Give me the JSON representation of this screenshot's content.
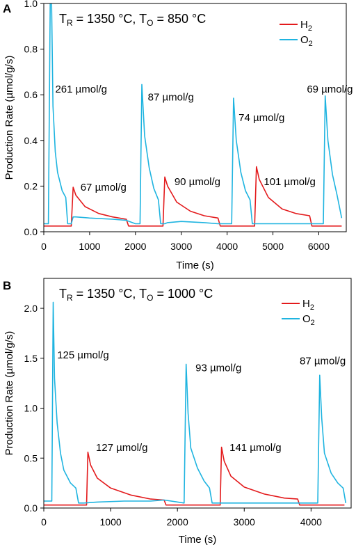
{
  "chart_data": [
    {
      "type": "line",
      "panel_label": "A",
      "condition": {
        "tr_sub": "R",
        "tr_value": " = 1350 °C, T",
        "to_sub": "O",
        "to_value": " = 850 °C"
      },
      "xlabel": "Time (s)",
      "ylabel": "Production Rate (µmol/g/s)",
      "xlim": [
        0,
        6600
      ],
      "ylim": [
        0,
        1.0
      ],
      "xticks": [
        0,
        1000,
        2000,
        3000,
        4000,
        5000,
        6000
      ],
      "yticks": [
        0.0,
        0.2,
        0.4,
        0.6,
        0.8,
        1.0
      ],
      "ytick_labels": [
        "0.0",
        "0.2",
        "0.4",
        "0.6",
        "0.8",
        "1.0"
      ],
      "legend": {
        "position": "top-right",
        "entries": [
          {
            "base": "H",
            "sub": "2",
            "color": "#e31a1c"
          },
          {
            "base": "O",
            "sub": "2",
            "color": "#1fb4e0"
          }
        ]
      },
      "series": [
        {
          "name": "H2",
          "color": "#e31a1c",
          "x": [
            0,
            200,
            400,
            600,
            640,
            700,
            900,
            1200,
            1500,
            1800,
            1850,
            2000,
            2200,
            2400,
            2600,
            2640,
            2700,
            2900,
            3200,
            3500,
            3800,
            3850,
            4000,
            4200,
            4400,
            4600,
            4640,
            4700,
            4900,
            5200,
            5500,
            5800,
            5850,
            6000,
            6200,
            6500
          ],
          "y": [
            0.025,
            0.025,
            0.025,
            0.025,
            0.195,
            0.16,
            0.11,
            0.08,
            0.065,
            0.055,
            0.025,
            0.025,
            0.025,
            0.025,
            0.025,
            0.24,
            0.2,
            0.13,
            0.09,
            0.07,
            0.06,
            0.025,
            0.025,
            0.025,
            0.025,
            0.025,
            0.285,
            0.23,
            0.15,
            0.1,
            0.08,
            0.07,
            0.025,
            0.025,
            0.025,
            0.025
          ]
        },
        {
          "name": "O2",
          "color": "#1fb4e0",
          "x": [
            0,
            100,
            140,
            170,
            200,
            250,
            300,
            400,
            480,
            520,
            600,
            640,
            700,
            1000,
            1500,
            1800,
            2000,
            2100,
            2140,
            2200,
            2300,
            2400,
            2500,
            2550,
            2640,
            2700,
            3000,
            3500,
            3800,
            4000,
            4100,
            4140,
            4200,
            4300,
            4400,
            4500,
            4550,
            4640,
            5000,
            5500,
            5800,
            6000,
            6100,
            6140,
            6200,
            6300,
            6400,
            6500
          ],
          "y": [
            0.035,
            0.035,
            1.0,
            1.0,
            0.55,
            0.35,
            0.26,
            0.18,
            0.15,
            0.035,
            0.035,
            0.065,
            0.065,
            0.06,
            0.055,
            0.05,
            0.035,
            0.035,
            0.645,
            0.42,
            0.28,
            0.19,
            0.14,
            0.035,
            0.035,
            0.04,
            0.045,
            0.04,
            0.035,
            0.035,
            0.035,
            0.585,
            0.4,
            0.26,
            0.18,
            0.14,
            0.035,
            0.035,
            0.035,
            0.035,
            0.035,
            0.035,
            0.035,
            0.595,
            0.4,
            0.25,
            0.16,
            0.06
          ]
        }
      ],
      "annotations": [
        {
          "text": "261 µmol/g",
          "x": 250,
          "y": 0.61,
          "anchor": "start"
        },
        {
          "text": "67 µmol/g",
          "x": 800,
          "y": 0.18,
          "anchor": "start"
        },
        {
          "text": "87 µmol/g",
          "x": 2270,
          "y": 0.575,
          "anchor": "start"
        },
        {
          "text": "90 µmol/g",
          "x": 2850,
          "y": 0.205,
          "anchor": "start"
        },
        {
          "text": "74 µmol/g",
          "x": 4250,
          "y": 0.485,
          "anchor": "start"
        },
        {
          "text": "101 µmol/g",
          "x": 4800,
          "y": 0.205,
          "anchor": "start"
        },
        {
          "text": "69 µmol/g",
          "x": 5740,
          "y": 0.61,
          "anchor": "start"
        }
      ]
    },
    {
      "type": "line",
      "panel_label": "B",
      "condition": {
        "tr_sub": "R",
        "tr_value": " = 1350 °C, T",
        "to_sub": "O",
        "to_value": " = 1000 °C"
      },
      "xlabel": "Time (s)",
      "ylabel": "Production Rate (µmol/g/s)",
      "xlim": [
        0,
        4600
      ],
      "ylim": [
        0,
        2.3
      ],
      "xticks": [
        0,
        1000,
        2000,
        3000,
        4000
      ],
      "yticks": [
        0.0,
        0.5,
        1.0,
        1.5,
        2.0
      ],
      "ytick_labels": [
        "0.0",
        "0.5",
        "1.0",
        "1.5",
        "2.0"
      ],
      "legend": {
        "position": "top-right",
        "entries": [
          {
            "base": "H",
            "sub": "2",
            "color": "#e31a1c"
          },
          {
            "base": "O",
            "sub": "2",
            "color": "#1fb4e0"
          }
        ]
      },
      "series": [
        {
          "name": "H2",
          "color": "#e31a1c",
          "x": [
            0,
            300,
            600,
            640,
            660,
            700,
            800,
            1000,
            1300,
            1600,
            1800,
            1830,
            2000,
            2300,
            2600,
            2640,
            2660,
            2700,
            2800,
            3000,
            3300,
            3600,
            3800,
            3830,
            4200,
            4500
          ],
          "y": [
            0.03,
            0.03,
            0.03,
            0.03,
            0.56,
            0.43,
            0.3,
            0.2,
            0.13,
            0.09,
            0.08,
            0.03,
            0.03,
            0.03,
            0.03,
            0.03,
            0.61,
            0.47,
            0.32,
            0.21,
            0.14,
            0.1,
            0.09,
            0.03,
            0.03,
            0.03
          ]
        },
        {
          "name": "O2",
          "color": "#1fb4e0",
          "x": [
            0,
            120,
            140,
            160,
            200,
            250,
            300,
            400,
            480,
            520,
            600,
            800,
            1200,
            1600,
            1800,
            2100,
            2130,
            2160,
            2200,
            2300,
            2400,
            2480,
            2520,
            2700,
            3200,
            3800,
            4100,
            4130,
            4160,
            4200,
            4300,
            4400,
            4480,
            4520
          ],
          "y": [
            0.07,
            0.07,
            2.06,
            1.3,
            0.85,
            0.55,
            0.38,
            0.25,
            0.2,
            0.05,
            0.05,
            0.06,
            0.07,
            0.07,
            0.08,
            0.05,
            1.44,
            0.95,
            0.6,
            0.4,
            0.27,
            0.2,
            0.05,
            0.05,
            0.05,
            0.05,
            0.05,
            1.33,
            0.9,
            0.55,
            0.35,
            0.25,
            0.2,
            0.05
          ]
        }
      ],
      "annotations": [
        {
          "text": "125 µmol/g",
          "x": 200,
          "y": 1.5,
          "anchor": "start"
        },
        {
          "text": "127 µmol/g",
          "x": 780,
          "y": 0.57,
          "anchor": "start"
        },
        {
          "text": "93 µmol/g",
          "x": 2270,
          "y": 1.37,
          "anchor": "start"
        },
        {
          "text": "141 µmol/g",
          "x": 2780,
          "y": 0.57,
          "anchor": "start"
        },
        {
          "text": "87 µmol/g",
          "x": 3830,
          "y": 1.44,
          "anchor": "start"
        }
      ]
    }
  ]
}
